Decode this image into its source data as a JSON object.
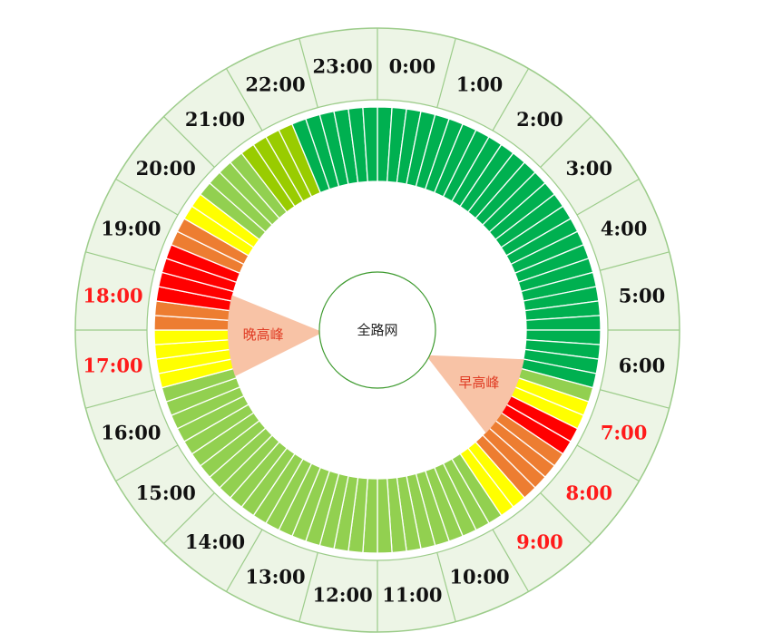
{
  "chart_data": {
    "type": "radial-heatmap",
    "center_label": "全路网",
    "hour_labels": [
      "0:00",
      "1:00",
      "2:00",
      "3:00",
      "4:00",
      "5:00",
      "6:00",
      "7:00",
      "8:00",
      "9:00",
      "10:00",
      "11:00",
      "12:00",
      "13:00",
      "14:00",
      "15:00",
      "16:00",
      "17:00",
      "18:00",
      "19:00",
      "20:00",
      "21:00",
      "22:00",
      "23:00"
    ],
    "highlight_hours": [
      "7:00",
      "8:00",
      "9:00",
      "17:00",
      "18:00"
    ],
    "peaks": [
      {
        "label": "早高峰",
        "start_hour": 7,
        "end_hour": 9
      },
      {
        "label": "晚高峰",
        "start_hour": 17,
        "end_hour": 19
      }
    ],
    "segments_per_hour": 4,
    "levels": [
      2,
      2,
      2,
      2,
      2,
      2,
      2,
      2,
      2,
      2,
      2,
      2,
      2,
      2,
      2,
      2,
      2,
      2,
      2,
      2,
      2,
      2,
      2,
      2,
      2,
      2,
      2,
      2,
      3,
      4,
      4,
      6,
      6,
      5,
      5,
      5,
      5,
      4,
      4,
      3,
      3,
      3,
      3,
      3,
      3,
      3,
      3,
      3,
      3,
      3,
      3,
      3,
      3,
      3,
      3,
      3,
      3,
      3,
      3,
      3,
      3,
      3,
      3,
      3,
      3,
      3,
      3,
      3,
      4,
      4,
      4,
      4,
      5,
      5,
      6,
      6,
      6,
      6,
      5,
      5,
      4,
      4,
      3,
      3,
      3,
      3,
      1,
      1,
      1,
      1,
      2,
      2,
      2,
      2,
      2,
      2
    ],
    "level_colors": {
      "1": "#99cc00",
      "2": "#00b050",
      "3": "#92d050",
      "4": "#ffff00",
      "5": "#ed7d31",
      "6": "#ff0000"
    },
    "colors": {
      "outer_ring": "#edf5e6",
      "ring_stroke": "#9ccc8a",
      "peak_fill": "#f8c3a6",
      "peak_text": "#e03c24",
      "hour_text": "#111111",
      "highlight_text": "#ff1a1a",
      "center_text": "#222222",
      "center_stroke": "#3d9a2e"
    }
  }
}
